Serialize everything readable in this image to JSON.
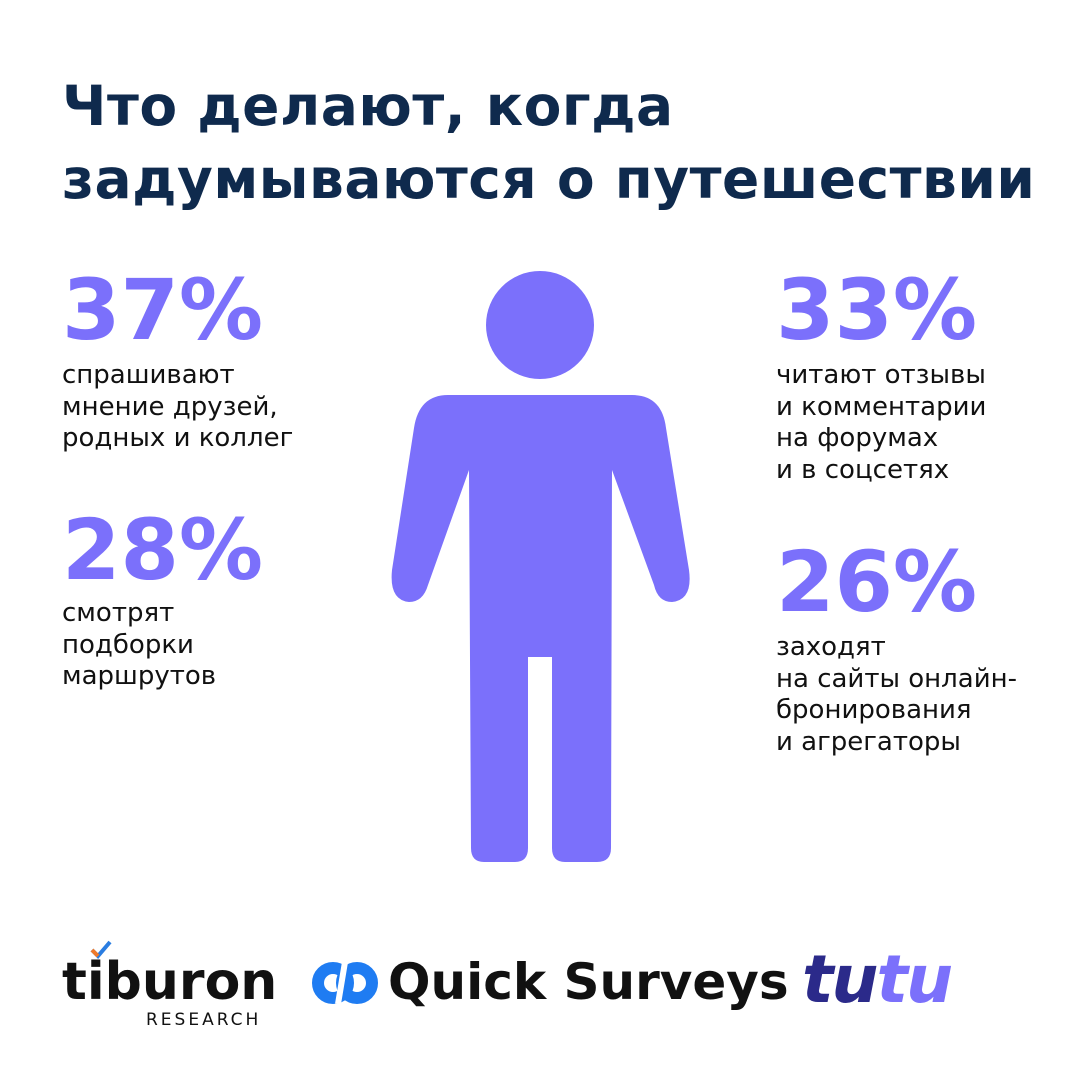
{
  "title": {
    "lines": [
      "Что делают, когда",
      "задумываются о путешествии"
    ]
  },
  "stats": [
    {
      "value": "37%",
      "lines": [
        "спрашивают",
        "мнение друзей,",
        "родных и коллег"
      ]
    },
    {
      "value": "28%",
      "lines": [
        "смотрят",
        "подборки",
        "маршрутов"
      ]
    },
    {
      "value": "33%",
      "lines": [
        "читают отзывы",
        "и комментарии",
        "на форумах",
        "и в соцсетях"
      ]
    },
    {
      "value": "26%",
      "lines": [
        "заходят",
        "на сайты онлайн-",
        "бронирования",
        "и агрегаторы"
      ]
    }
  ],
  "logos": {
    "tiburon": {
      "name": "tiburon",
      "sub": "RESEARCH"
    },
    "quick_surveys": "Quick Surveys",
    "tutu": [
      "tu",
      "tu"
    ]
  }
}
